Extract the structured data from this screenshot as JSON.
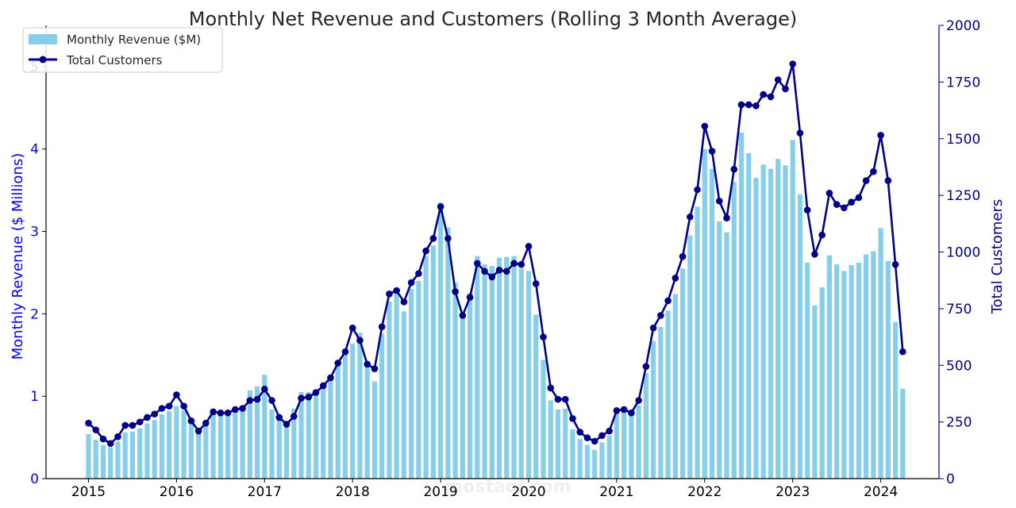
{
  "chart_data": {
    "type": "bar+line",
    "title": "Monthly Net Revenue and Customers (Rolling 3 Month Average)",
    "ylabel_left": "Monthly Revenue ($ Millions)",
    "ylabel_right": "Total Customers",
    "ylim_left": [
      0,
      5.5
    ],
    "ylim_right": [
      0,
      2000
    ],
    "yticks_left": [
      "0",
      "1",
      "2",
      "3",
      "4",
      "5"
    ],
    "yticks_right": [
      "0",
      "250",
      "500",
      "750",
      "1000",
      "1250",
      "1500",
      "1750",
      "2000"
    ],
    "xticks": [
      "2015",
      "2016",
      "2017",
      "2018",
      "2019",
      "2020",
      "2021",
      "2022",
      "2023",
      "2024"
    ],
    "legend_position": "top-left",
    "colors": {
      "bars": "#87ceeb",
      "line": "#00008b",
      "left_axis": "#0000ff",
      "right_axis": "#00008b"
    },
    "start": "2015-01",
    "series": [
      {
        "name": "Monthly Revenue ($M)",
        "kind": "bar",
        "values": [
          0.54,
          0.47,
          0.41,
          0.38,
          0.45,
          0.56,
          0.57,
          0.61,
          0.67,
          0.71,
          0.78,
          0.82,
          0.88,
          0.83,
          0.66,
          0.58,
          0.66,
          0.78,
          0.77,
          0.76,
          0.82,
          0.85,
          1.07,
          1.12,
          1.26,
          0.84,
          0.74,
          0.64,
          0.85,
          1.05,
          1.05,
          1.08,
          1.14,
          1.22,
          1.38,
          1.51,
          1.64,
          1.77,
          1.37,
          1.18,
          1.76,
          2.15,
          2.25,
          2.03,
          2.3,
          2.4,
          2.7,
          2.83,
          3.35,
          3.05,
          2.38,
          2.01,
          2.25,
          2.7,
          2.6,
          2.58,
          2.68,
          2.69,
          2.7,
          2.55,
          2.52,
          1.99,
          1.44,
          0.95,
          0.84,
          0.85,
          0.6,
          0.48,
          0.41,
          0.35,
          0.44,
          0.52,
          0.81,
          0.83,
          0.8,
          0.89,
          1.28,
          1.67,
          1.84,
          2.04,
          2.24,
          2.55,
          2.95,
          3.3,
          4.0,
          3.76,
          3.12,
          2.99,
          3.6,
          4.2,
          3.95,
          3.65,
          3.81,
          3.76,
          3.88,
          3.8,
          4.11,
          3.45,
          2.62,
          2.1,
          2.32,
          2.71,
          2.6,
          2.52,
          2.59,
          2.62,
          2.72,
          2.76,
          3.04,
          2.64,
          1.9,
          1.09
        ]
      },
      {
        "name": "Total Customers",
        "kind": "line",
        "values": [
          245,
          215,
          175,
          155,
          185,
          235,
          235,
          250,
          270,
          285,
          310,
          320,
          370,
          320,
          255,
          210,
          245,
          295,
          290,
          290,
          305,
          310,
          345,
          350,
          395,
          345,
          270,
          240,
          275,
          355,
          360,
          380,
          410,
          445,
          510,
          560,
          665,
          610,
          505,
          485,
          670,
          815,
          830,
          780,
          865,
          905,
          1005,
          1060,
          1200,
          1060,
          825,
          720,
          800,
          950,
          915,
          890,
          920,
          915,
          950,
          945,
          1025,
          860,
          625,
          400,
          350,
          350,
          265,
          205,
          180,
          165,
          190,
          210,
          300,
          305,
          290,
          345,
          495,
          665,
          720,
          785,
          885,
          980,
          1155,
          1275,
          1555,
          1445,
          1225,
          1150,
          1365,
          1650,
          1650,
          1645,
          1695,
          1685,
          1760,
          1720,
          1830,
          1525,
          1185,
          990,
          1075,
          1260,
          1210,
          1195,
          1220,
          1240,
          1315,
          1355,
          1515,
          1315,
          945,
          560
        ]
      }
    ]
  },
  "watermark": "mostaql.com"
}
